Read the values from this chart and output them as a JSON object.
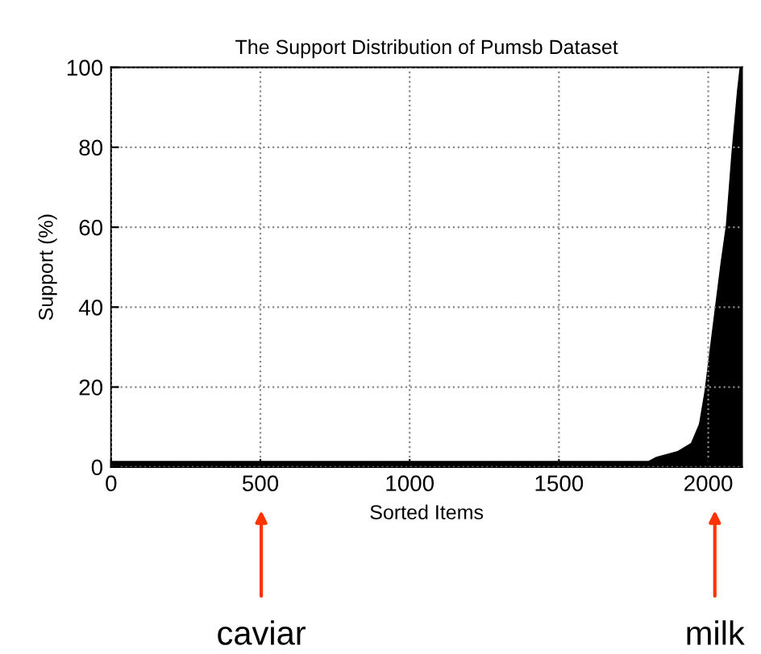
{
  "chart_data": {
    "type": "area",
    "title": "The Support Distribution of Pumsb Dataset",
    "xlabel": "Sorted Items",
    "ylabel": "Support (%)",
    "x": [
      0,
      500,
      1000,
      1500,
      1800,
      1825,
      1897,
      1942,
      1969,
      1987,
      2005,
      2023,
      2041,
      2059,
      2077,
      2096,
      2105,
      2113
    ],
    "series": [
      {
        "color": "#000000",
        "values": [
          1.5,
          1.5,
          1.5,
          1.5,
          1.5,
          2.5,
          4,
          6,
          10.8,
          18.8,
          29.6,
          40.3,
          51,
          60.5,
          78,
          94,
          100,
          100
        ]
      }
    ],
    "xlim": [
      0,
      2113
    ],
    "ylim": [
      0,
      100
    ],
    "xticks": [
      0,
      500,
      1000,
      1500,
      2000
    ],
    "yticks": [
      0,
      20,
      40,
      60,
      80,
      100
    ],
    "grid": true,
    "legend": false,
    "annotations": [
      "caviar",
      "milk"
    ]
  }
}
